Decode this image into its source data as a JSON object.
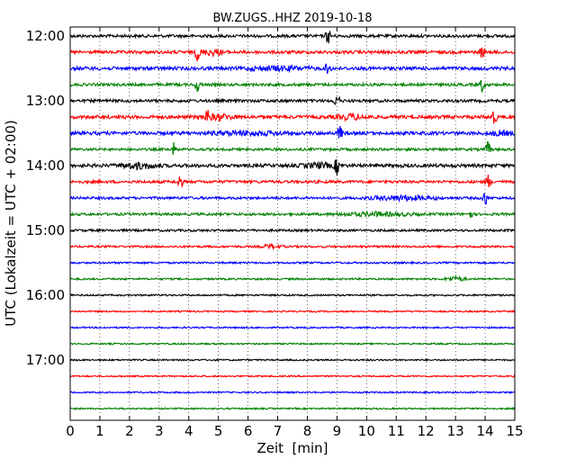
{
  "chart_data": {
    "type": "line",
    "title": "BW.ZUGS..HHZ 2019-10-18",
    "xlabel": "Zeit  [min]",
    "ylabel": "UTC (Lokalzeit = UTC + 02:00)",
    "xlim": [
      0,
      15
    ],
    "x_ticks": [
      0,
      1,
      2,
      3,
      4,
      5,
      6,
      7,
      8,
      9,
      10,
      11,
      12,
      13,
      14,
      15
    ],
    "x_tick_labels": [
      "0",
      "1",
      "2",
      "3",
      "4",
      "5",
      "6",
      "7",
      "8",
      "9",
      "10",
      "11",
      "12",
      "13",
      "14",
      "15"
    ],
    "y_tick_labels": [
      "12:00",
      "13:00",
      "14:00",
      "15:00",
      "16:00",
      "17:00"
    ],
    "grid": "vertical dotted",
    "row_colors": [
      "#000000",
      "#ff0000",
      "#0000ff",
      "#008000"
    ],
    "rows": [
      {
        "start": "12:00",
        "color_index": 0,
        "activity": 0.6,
        "spikes": [
          {
            "x": 8.7,
            "amp": 1.0
          }
        ],
        "bursts": []
      },
      {
        "start": "12:15",
        "color_index": 1,
        "activity": 0.7,
        "spikes": [
          {
            "x": 4.3,
            "amp": 1.0
          },
          {
            "x": 13.9,
            "amp": 0.8
          }
        ],
        "bursts": [
          {
            "x": 4.8,
            "w": 0.6,
            "amp": 0.6
          }
        ]
      },
      {
        "start": "12:30",
        "color_index": 2,
        "activity": 0.8,
        "spikes": [
          {
            "x": 8.7,
            "amp": 0.9
          }
        ],
        "bursts": [
          {
            "x": 7.0,
            "w": 1.5,
            "amp": 0.4
          }
        ]
      },
      {
        "start": "12:45",
        "color_index": 3,
        "activity": 0.6,
        "spikes": [
          {
            "x": 4.3,
            "amp": 0.9
          },
          {
            "x": 13.9,
            "amp": 0.9
          }
        ],
        "bursts": []
      },
      {
        "start": "13:00",
        "color_index": 0,
        "activity": 0.6,
        "spikes": [
          {
            "x": 9.0,
            "amp": 1.0
          }
        ],
        "bursts": []
      },
      {
        "start": "13:15",
        "color_index": 1,
        "activity": 0.8,
        "spikes": [
          {
            "x": 4.6,
            "amp": 1.0
          },
          {
            "x": 14.3,
            "amp": 0.9
          }
        ],
        "bursts": [
          {
            "x": 5.0,
            "w": 0.7,
            "amp": 0.6
          },
          {
            "x": 9.5,
            "w": 0.8,
            "amp": 0.5
          }
        ]
      },
      {
        "start": "13:30",
        "color_index": 2,
        "activity": 0.8,
        "spikes": [
          {
            "x": 9.1,
            "amp": 0.9
          }
        ],
        "bursts": [
          {
            "x": 6.0,
            "w": 1.8,
            "amp": 0.4
          },
          {
            "x": 14.5,
            "w": 0.6,
            "amp": 0.4
          }
        ]
      },
      {
        "start": "13:45",
        "color_index": 3,
        "activity": 0.5,
        "spikes": [
          {
            "x": 3.5,
            "amp": 0.8
          },
          {
            "x": 14.1,
            "amp": 1.0
          }
        ],
        "bursts": []
      },
      {
        "start": "14:00",
        "color_index": 0,
        "activity": 0.8,
        "spikes": [
          {
            "x": 9.0,
            "amp": 1.0
          }
        ],
        "bursts": [
          {
            "x": 2.3,
            "w": 0.9,
            "amp": 0.6
          },
          {
            "x": 8.4,
            "w": 0.8,
            "amp": 0.5
          }
        ]
      },
      {
        "start": "14:15",
        "color_index": 1,
        "activity": 0.6,
        "spikes": [
          {
            "x": 3.7,
            "amp": 1.0
          },
          {
            "x": 14.1,
            "amp": 0.9
          }
        ],
        "bursts": []
      },
      {
        "start": "14:30",
        "color_index": 2,
        "activity": 0.5,
        "spikes": [
          {
            "x": 14.0,
            "amp": 1.0
          }
        ],
        "bursts": [
          {
            "x": 11.2,
            "w": 1.5,
            "amp": 0.5
          }
        ]
      },
      {
        "start": "14:45",
        "color_index": 3,
        "activity": 0.5,
        "spikes": [
          {
            "x": 13.5,
            "amp": 0.5
          }
        ],
        "bursts": [
          {
            "x": 10.3,
            "w": 1.8,
            "amp": 0.4
          }
        ]
      },
      {
        "start": "15:00",
        "color_index": 0,
        "activity": 0.4,
        "spikes": [],
        "bursts": []
      },
      {
        "start": "15:15",
        "color_index": 1,
        "activity": 0.35,
        "spikes": [],
        "bursts": [
          {
            "x": 6.8,
            "w": 0.5,
            "amp": 0.4
          }
        ]
      },
      {
        "start": "15:30",
        "color_index": 2,
        "activity": 0.25,
        "spikes": [],
        "bursts": []
      },
      {
        "start": "15:45",
        "color_index": 3,
        "activity": 0.25,
        "spikes": [],
        "bursts": [
          {
            "x": 13.0,
            "w": 0.5,
            "amp": 0.45
          }
        ]
      },
      {
        "start": "16:00",
        "color_index": 0,
        "activity": 0.2,
        "spikes": [],
        "bursts": []
      },
      {
        "start": "16:15",
        "color_index": 1,
        "activity": 0.15,
        "spikes": [],
        "bursts": []
      },
      {
        "start": "16:30",
        "color_index": 2,
        "activity": 0.15,
        "spikes": [],
        "bursts": []
      },
      {
        "start": "16:45",
        "color_index": 3,
        "activity": 0.15,
        "spikes": [],
        "bursts": []
      },
      {
        "start": "17:00",
        "color_index": 0,
        "activity": 0.15,
        "spikes": [],
        "bursts": []
      },
      {
        "start": "17:15",
        "color_index": 1,
        "activity": 0.15,
        "spikes": [],
        "bursts": []
      },
      {
        "start": "17:30",
        "color_index": 2,
        "activity": 0.15,
        "spikes": [],
        "bursts": []
      },
      {
        "start": "17:45",
        "color_index": 3,
        "activity": 0.15,
        "spikes": [],
        "bursts": []
      }
    ]
  }
}
